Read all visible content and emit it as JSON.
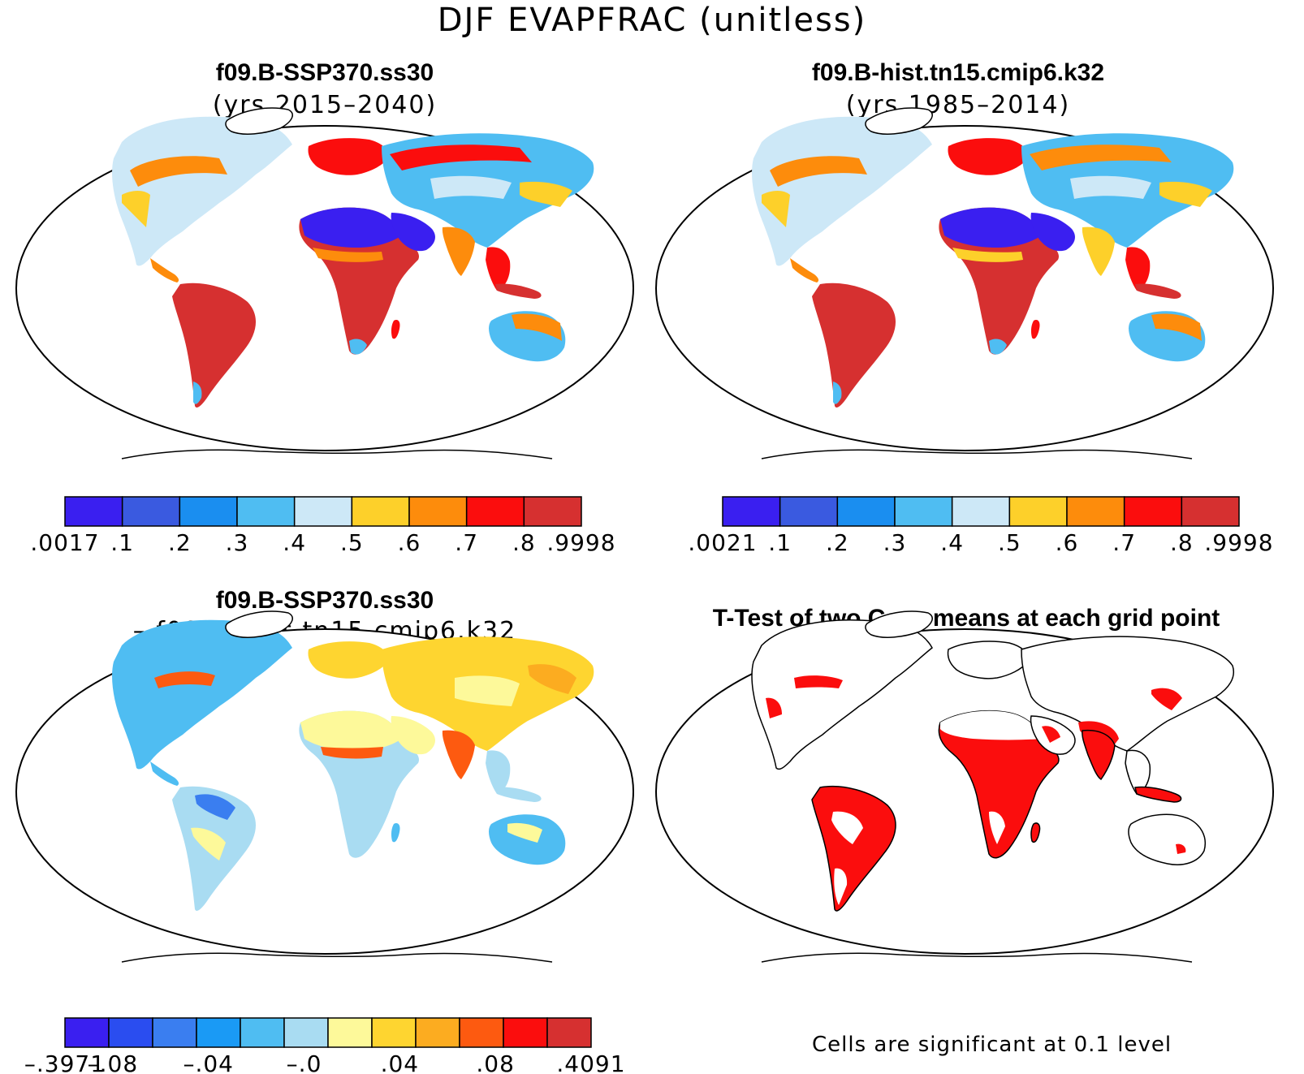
{
  "main_title": "DJF EVAPFRAC (unitless)",
  "panels": [
    {
      "title": "f09.B-SSP370.ss30",
      "subtitle": "(yrs 2015–2040)",
      "colorbar": {
        "colors": [
          "#3a1ff0",
          "#3a5ae0",
          "#1a8ef0",
          "#4fbdf2",
          "#cde8f7",
          "#fdd02a",
          "#fd8c0c",
          "#fb0d0d",
          "#d63030"
        ],
        "labels": [
          ".0017",
          ".1",
          ".2",
          ".3",
          ".4",
          ".5",
          ".6",
          ".7",
          ".8",
          ".9998"
        ]
      }
    },
    {
      "title": "f09.B-hist.tn15.cmip6.k32",
      "subtitle": "(yrs 1985–2014)",
      "colorbar": {
        "colors": [
          "#3a1ff0",
          "#3a5ae0",
          "#1a8ef0",
          "#4fbdf2",
          "#cde8f7",
          "#fdd02a",
          "#fd8c0c",
          "#fb0d0d",
          "#d63030"
        ],
        "labels": [
          ".0021",
          ".1",
          ".2",
          ".3",
          ".4",
          ".5",
          ".6",
          ".7",
          ".8",
          ".9998"
        ]
      }
    },
    {
      "title": "f09.B-SSP370.ss30",
      "subtitle": "– f09.B–hist.tn15.cmip6.k32",
      "colorbar": {
        "colors": [
          "#3a1ff0",
          "#2a4df0",
          "#3a7ef0",
          "#1a9af5",
          "#4fbdf2",
          "#a9dcf2",
          "#fdf99a",
          "#fed530",
          "#fcac20",
          "#fd5a10",
          "#fb0d0d",
          "#d63030"
        ],
        "labels": [
          "–.3971",
          "–.08",
          "",
          "–.04",
          "",
          "–.0",
          "",
          ".04",
          "",
          ".08",
          "",
          ".4091"
        ]
      }
    },
    {
      "title": "T-Test of two Case means at each grid point",
      "subtitle": ""
    }
  ],
  "significance_note": "Cells are significant at 0.1 level",
  "map_colors": {
    "land_blue_deep": "#3a1ff0",
    "land_red": "#d63030",
    "land_orange": "#fd8c0c",
    "land_yellow": "#fdd02a",
    "land_light": "#cde8f7",
    "land_cyan": "#4fbdf2",
    "diff_yellow": "#fdf99a",
    "diff_lightblue": "#a9dcf2",
    "significant_red": "#fb0d0d"
  }
}
